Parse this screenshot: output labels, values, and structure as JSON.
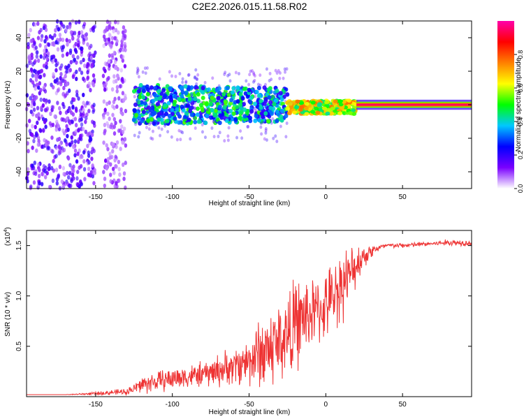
{
  "title": "C2E2.2026.015.11.58.R02",
  "chart_data": [
    {
      "type": "heatmap",
      "name": "spectrogram",
      "xlabel": "Height of straight line (km)",
      "ylabel": "Frequency (Hz)",
      "xlim": [
        -195,
        95
      ],
      "ylim": [
        -50,
        50
      ],
      "xticks": [
        "-150",
        "-100",
        "-50",
        "0",
        "50"
      ],
      "xtick_values": [
        -150,
        -100,
        -50,
        0,
        50
      ],
      "yticks": [
        "-40",
        "-20",
        "0",
        "20",
        "40"
      ],
      "ytick_values": [
        -40,
        -20,
        0,
        20,
        40
      ],
      "description_regions": [
        {
          "x_range": [
            -195,
            -150
          ],
          "amplitude": 0.12,
          "band": "full",
          "style": "scattered"
        },
        {
          "x_range": [
            -145,
            -130
          ],
          "amplitude": 0.08,
          "band": "full",
          "style": "scattered"
        },
        {
          "x_range": [
            -125,
            -25
          ],
          "amplitude": 0.3,
          "band": [
            -10,
            10
          ],
          "style": "noisy"
        },
        {
          "x_range": [
            -25,
            20
          ],
          "amplitude": 0.6,
          "band": [
            -4,
            4
          ],
          "style": "narrow"
        },
        {
          "x_range": [
            20,
            95
          ],
          "amplitude": 0.95,
          "band": [
            -1.5,
            1.5
          ],
          "style": "line"
        }
      ],
      "colorbar": {
        "label": "Normalized spectral amplitude",
        "range": [
          0,
          1
        ],
        "ticks": [
          "0.0",
          "0.2",
          "0.4",
          "0.6",
          "0.8"
        ],
        "tick_values": [
          0,
          0.2,
          0.4,
          0.6,
          0.8
        ],
        "colors": [
          "#ffffff",
          "#7a00ff",
          "#0000ff",
          "#00c8ff",
          "#00ff00",
          "#ffff00",
          "#ff8000",
          "#ff0000",
          "#ff00aa"
        ]
      }
    },
    {
      "type": "line",
      "name": "snr",
      "xlabel": "Height of straight line (km)",
      "ylabel": "SNR (10 * v/v)",
      "scale_label": "(x10",
      "scale_exponent": "4",
      "scale_suffix": ")",
      "color": "#ee3333",
      "xlim": [
        -195,
        95
      ],
      "ylim": [
        0,
        1.65
      ],
      "xticks": [
        "-150",
        "-100",
        "-50",
        "0",
        "50"
      ],
      "xtick_values": [
        -150,
        -100,
        -50,
        0,
        50
      ],
      "yticks": [
        "0.5",
        "1.0",
        "1.5"
      ],
      "ytick_values": [
        0.5,
        1.0,
        1.5
      ],
      "x": [
        -195,
        -170,
        -150,
        -140,
        -130,
        -125,
        -120,
        -110,
        -100,
        -90,
        -80,
        -70,
        -60,
        -50,
        -45,
        -40,
        -35,
        -30,
        -25,
        -20,
        -15,
        -10,
        -5,
        0,
        5,
        10,
        15,
        20,
        25,
        30,
        35,
        40,
        50,
        60,
        70,
        80,
        90,
        95
      ],
      "y": [
        0.02,
        0.02,
        0.03,
        0.04,
        0.05,
        0.08,
        0.12,
        0.15,
        0.18,
        0.2,
        0.22,
        0.26,
        0.3,
        0.36,
        0.42,
        0.45,
        0.5,
        0.55,
        0.62,
        0.7,
        0.78,
        0.82,
        0.85,
        0.9,
        1.0,
        1.12,
        1.18,
        1.32,
        1.4,
        1.45,
        1.48,
        1.5,
        1.5,
        1.51,
        1.52,
        1.53,
        1.53,
        1.52
      ],
      "noise_amplitude": [
        0.0,
        0.0,
        0.02,
        0.03,
        0.04,
        0.06,
        0.12,
        0.12,
        0.14,
        0.14,
        0.15,
        0.2,
        0.22,
        0.3,
        0.4,
        0.5,
        0.5,
        0.5,
        0.55,
        0.55,
        0.5,
        0.45,
        0.4,
        0.4,
        0.4,
        0.45,
        0.35,
        0.25,
        0.15,
        0.08,
        0.04,
        0.03,
        0.03,
        0.03,
        0.03,
        0.04,
        0.04,
        0.03
      ]
    }
  ]
}
